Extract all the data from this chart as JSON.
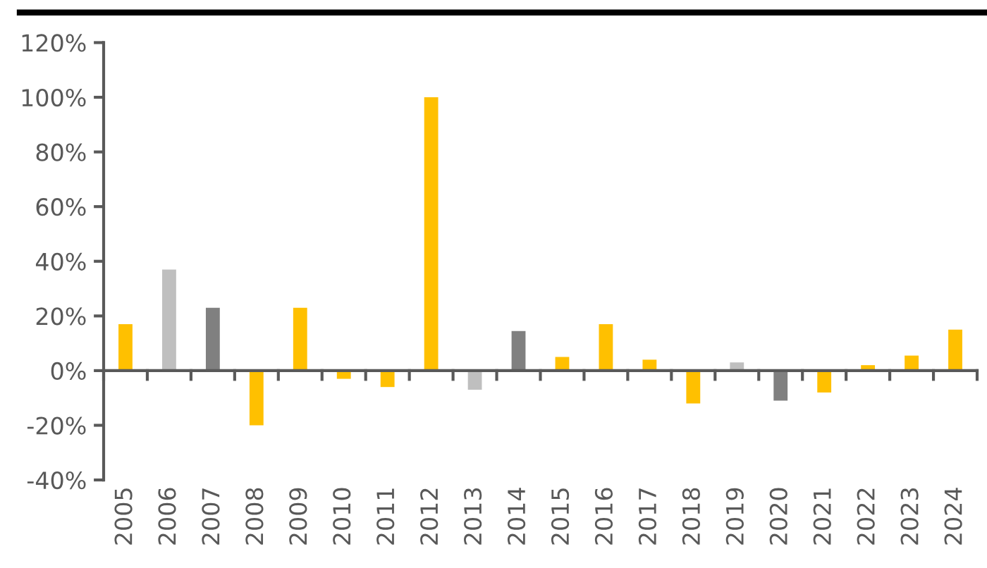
{
  "chart_data": {
    "type": "bar",
    "categories": [
      "2005",
      "2006",
      "2007",
      "2008",
      "2009",
      "2010",
      "2011",
      "2012",
      "2013",
      "2014",
      "2015",
      "2016",
      "2017",
      "2018",
      "2019",
      "2020",
      "2021",
      "2022",
      "2023",
      "2024"
    ],
    "values": [
      17,
      37,
      23,
      -20,
      23,
      -3,
      -6,
      100,
      -7,
      14.5,
      5,
      17,
      4,
      -12,
      3,
      -11,
      -8,
      2,
      5.5,
      15
    ],
    "colors": [
      "#ffc000",
      "#bfbfbf",
      "#808080",
      "#ffc000",
      "#ffc000",
      "#ffc000",
      "#ffc000",
      "#ffc000",
      "#bfbfbf",
      "#808080",
      "#ffc000",
      "#ffc000",
      "#ffc000",
      "#ffc000",
      "#bfbfbf",
      "#808080",
      "#ffc000",
      "#ffc000",
      "#ffc000",
      "#ffc000"
    ],
    "ylim": [
      -40,
      120
    ],
    "yticks": [
      {
        "value": -40,
        "label": "-40%"
      },
      {
        "value": -20,
        "label": "-20%"
      },
      {
        "value": 0,
        "label": "0%"
      },
      {
        "value": 20,
        "label": "20%"
      },
      {
        "value": 40,
        "label": "40%"
      },
      {
        "value": 60,
        "label": "60%"
      },
      {
        "value": 80,
        "label": "80%"
      },
      {
        "value": 100,
        "label": "100%"
      },
      {
        "value": 120,
        "label": "120%"
      }
    ],
    "legend": false
  }
}
